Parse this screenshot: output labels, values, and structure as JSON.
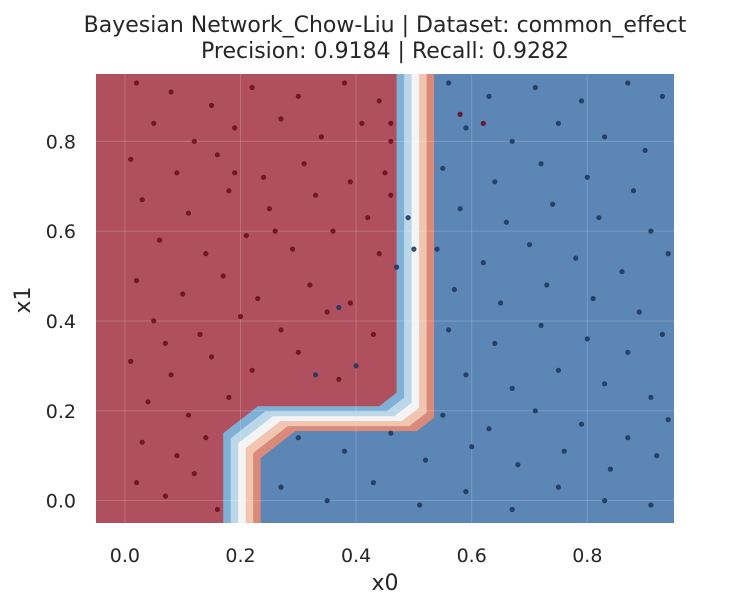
{
  "chart_data": {
    "type": "scatter",
    "title": "Bayesian Network_Chow-Liu | Dataset: common_effect",
    "subtitle": "Precision: 0.9184 | Recall: 0.9282",
    "xlabel": "x0",
    "ylabel": "x1",
    "xlim": [
      -0.05,
      0.95
    ],
    "ylim": [
      -0.05,
      0.95
    ],
    "xticks": [
      "0.0",
      "0.2",
      "0.4",
      "0.6",
      "0.8"
    ],
    "yticks": [
      "0.0",
      "0.2",
      "0.4",
      "0.6",
      "0.8"
    ],
    "grid": true,
    "decision_boundary": {
      "class_0_color": "#b0505f",
      "class_1_color": "#5b86b5",
      "region_0_outline_xy": [
        [
          -0.05,
          -0.05
        ],
        [
          0.17,
          -0.05
        ],
        [
          0.17,
          0.15
        ],
        [
          0.23,
          0.21
        ],
        [
          0.44,
          0.21
        ],
        [
          0.47,
          0.24
        ],
        [
          0.47,
          0.95
        ],
        [
          -0.05,
          0.95
        ]
      ],
      "transition_band": [
        "#d98a7a",
        "#f2c5b0",
        "#f4f4f4",
        "#bcd7e9",
        "#7fb0d5"
      ]
    },
    "series": [
      {
        "color": "#6b0f25",
        "points": [
          [
            0.02,
            0.93
          ],
          [
            0.08,
            0.91
          ],
          [
            0.15,
            0.88
          ],
          [
            0.22,
            0.92
          ],
          [
            0.3,
            0.9
          ],
          [
            0.38,
            0.93
          ],
          [
            0.44,
            0.89
          ],
          [
            0.05,
            0.84
          ],
          [
            0.12,
            0.8
          ],
          [
            0.19,
            0.83
          ],
          [
            0.27,
            0.85
          ],
          [
            0.34,
            0.81
          ],
          [
            0.41,
            0.84
          ],
          [
            0.46,
            0.8
          ],
          [
            0.01,
            0.76
          ],
          [
            0.09,
            0.73
          ],
          [
            0.16,
            0.77
          ],
          [
            0.24,
            0.72
          ],
          [
            0.31,
            0.75
          ],
          [
            0.39,
            0.71
          ],
          [
            0.03,
            0.67
          ],
          [
            0.11,
            0.64
          ],
          [
            0.18,
            0.69
          ],
          [
            0.25,
            0.65
          ],
          [
            0.33,
            0.68
          ],
          [
            0.42,
            0.63
          ],
          [
            0.06,
            0.58
          ],
          [
            0.14,
            0.55
          ],
          [
            0.21,
            0.59
          ],
          [
            0.29,
            0.56
          ],
          [
            0.36,
            0.6
          ],
          [
            0.44,
            0.55
          ],
          [
            0.02,
            0.49
          ],
          [
            0.1,
            0.46
          ],
          [
            0.17,
            0.5
          ],
          [
            0.23,
            0.45
          ],
          [
            0.32,
            0.48
          ],
          [
            0.39,
            0.44
          ],
          [
            0.05,
            0.4
          ],
          [
            0.13,
            0.37
          ],
          [
            0.2,
            0.41
          ],
          [
            0.27,
            0.38
          ],
          [
            0.35,
            0.42
          ],
          [
            0.43,
            0.37
          ],
          [
            0.01,
            0.31
          ],
          [
            0.08,
            0.28
          ],
          [
            0.15,
            0.32
          ],
          [
            0.22,
            0.29
          ],
          [
            0.3,
            0.33
          ],
          [
            0.37,
            0.27
          ],
          [
            0.04,
            0.22
          ],
          [
            0.11,
            0.19
          ],
          [
            0.18,
            0.23
          ],
          [
            0.03,
            0.13
          ],
          [
            0.09,
            0.1
          ],
          [
            0.14,
            0.14
          ],
          [
            0.02,
            0.04
          ],
          [
            0.07,
            0.01
          ],
          [
            0.12,
            0.06
          ],
          [
            0.16,
            -0.02
          ],
          [
            0.45,
            0.73
          ],
          [
            0.46,
            0.68
          ],
          [
            0.46,
            0.84
          ],
          [
            0.58,
            0.86
          ],
          [
            0.62,
            0.84
          ],
          [
            0.19,
            0.73
          ],
          [
            0.26,
            0.6
          ],
          [
            0.07,
            0.35
          ]
        ]
      },
      {
        "color": "#1f3a5f",
        "points": [
          [
            0.56,
            0.93
          ],
          [
            0.63,
            0.9
          ],
          [
            0.71,
            0.92
          ],
          [
            0.79,
            0.89
          ],
          [
            0.87,
            0.93
          ],
          [
            0.93,
            0.9
          ],
          [
            0.59,
            0.83
          ],
          [
            0.67,
            0.8
          ],
          [
            0.75,
            0.84
          ],
          [
            0.83,
            0.81
          ],
          [
            0.9,
            0.78
          ],
          [
            0.55,
            0.74
          ],
          [
            0.64,
            0.71
          ],
          [
            0.72,
            0.75
          ],
          [
            0.8,
            0.72
          ],
          [
            0.88,
            0.69
          ],
          [
            0.58,
            0.65
          ],
          [
            0.66,
            0.62
          ],
          [
            0.74,
            0.66
          ],
          [
            0.82,
            0.63
          ],
          [
            0.91,
            0.6
          ],
          [
            0.54,
            0.56
          ],
          [
            0.62,
            0.53
          ],
          [
            0.7,
            0.57
          ],
          [
            0.78,
            0.54
          ],
          [
            0.86,
            0.51
          ],
          [
            0.94,
            0.55
          ],
          [
            0.57,
            0.47
          ],
          [
            0.65,
            0.44
          ],
          [
            0.73,
            0.48
          ],
          [
            0.81,
            0.45
          ],
          [
            0.89,
            0.42
          ],
          [
            0.56,
            0.38
          ],
          [
            0.64,
            0.35
          ],
          [
            0.72,
            0.39
          ],
          [
            0.8,
            0.36
          ],
          [
            0.87,
            0.33
          ],
          [
            0.93,
            0.37
          ],
          [
            0.59,
            0.28
          ],
          [
            0.67,
            0.25
          ],
          [
            0.75,
            0.29
          ],
          [
            0.83,
            0.26
          ],
          [
            0.91,
            0.23
          ],
          [
            0.55,
            0.19
          ],
          [
            0.63,
            0.16
          ],
          [
            0.71,
            0.2
          ],
          [
            0.79,
            0.17
          ],
          [
            0.87,
            0.14
          ],
          [
            0.94,
            0.18
          ],
          [
            0.3,
            0.14
          ],
          [
            0.38,
            0.11
          ],
          [
            0.46,
            0.15
          ],
          [
            0.52,
            0.09
          ],
          [
            0.6,
            0.12
          ],
          [
            0.68,
            0.08
          ],
          [
            0.76,
            0.11
          ],
          [
            0.84,
            0.07
          ],
          [
            0.92,
            0.1
          ],
          [
            0.27,
            0.03
          ],
          [
            0.35,
            0.0
          ],
          [
            0.43,
            0.04
          ],
          [
            0.51,
            -0.01
          ],
          [
            0.59,
            0.02
          ],
          [
            0.67,
            -0.02
          ],
          [
            0.75,
            0.03
          ],
          [
            0.83,
            0.0
          ],
          [
            0.91,
            -0.01
          ],
          [
            0.4,
            0.3
          ],
          [
            0.37,
            0.43
          ],
          [
            0.33,
            0.28
          ],
          [
            0.47,
            0.52
          ],
          [
            0.49,
            0.63
          ],
          [
            0.5,
            0.56
          ]
        ]
      }
    ]
  }
}
